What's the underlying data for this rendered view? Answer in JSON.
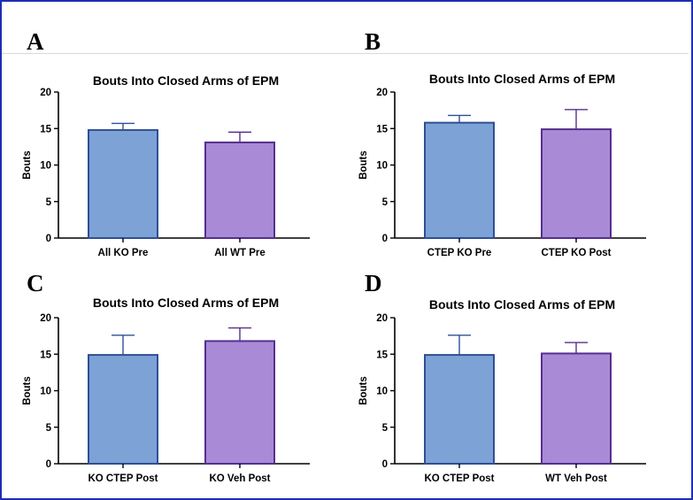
{
  "colors": {
    "ko": "#7da2d6",
    "ko_edge": "#2f4f94",
    "wt": "#a88ad6",
    "wt_edge": "#55308f",
    "frame": "#1c2fb4"
  },
  "chart_data": [
    {
      "type": "bar",
      "panel": "A",
      "title": "Bouts Into Closed Arms of EPM",
      "ylabel": "Bouts",
      "ylim": [
        0,
        20
      ],
      "yticks": [
        0,
        5,
        10,
        15,
        20
      ],
      "categories": [
        "All KO Pre",
        "All WT Pre"
      ],
      "values": [
        14.8,
        13.1
      ],
      "errors": [
        0.9,
        1.4
      ]
    },
    {
      "type": "bar",
      "panel": "B",
      "title": "Bouts Into Closed Arms of EPM",
      "ylabel": "Bouts",
      "ylim": [
        0,
        20
      ],
      "yticks": [
        0,
        5,
        10,
        15,
        20
      ],
      "categories": [
        "CTEP KO Pre",
        "CTEP KO Post"
      ],
      "values": [
        15.8,
        14.9
      ],
      "errors": [
        1.0,
        2.7
      ]
    },
    {
      "type": "bar",
      "panel": "C",
      "title": "Bouts Into Closed Arms of EPM",
      "ylabel": "Bouts",
      "ylim": [
        0,
        20
      ],
      "yticks": [
        0,
        5,
        10,
        15,
        20
      ],
      "categories": [
        "KO CTEP Post",
        "KO Veh Post"
      ],
      "values": [
        14.9,
        16.8
      ],
      "errors": [
        2.7,
        1.8
      ]
    },
    {
      "type": "bar",
      "panel": "D",
      "title": "Bouts Into Closed Arms of EPM",
      "ylabel": "Bouts",
      "ylim": [
        0,
        20
      ],
      "yticks": [
        0,
        5,
        10,
        15,
        20
      ],
      "categories": [
        "KO CTEP Post",
        "WT Veh Post"
      ],
      "values": [
        14.9,
        15.1
      ],
      "errors": [
        2.7,
        1.5
      ]
    }
  ]
}
